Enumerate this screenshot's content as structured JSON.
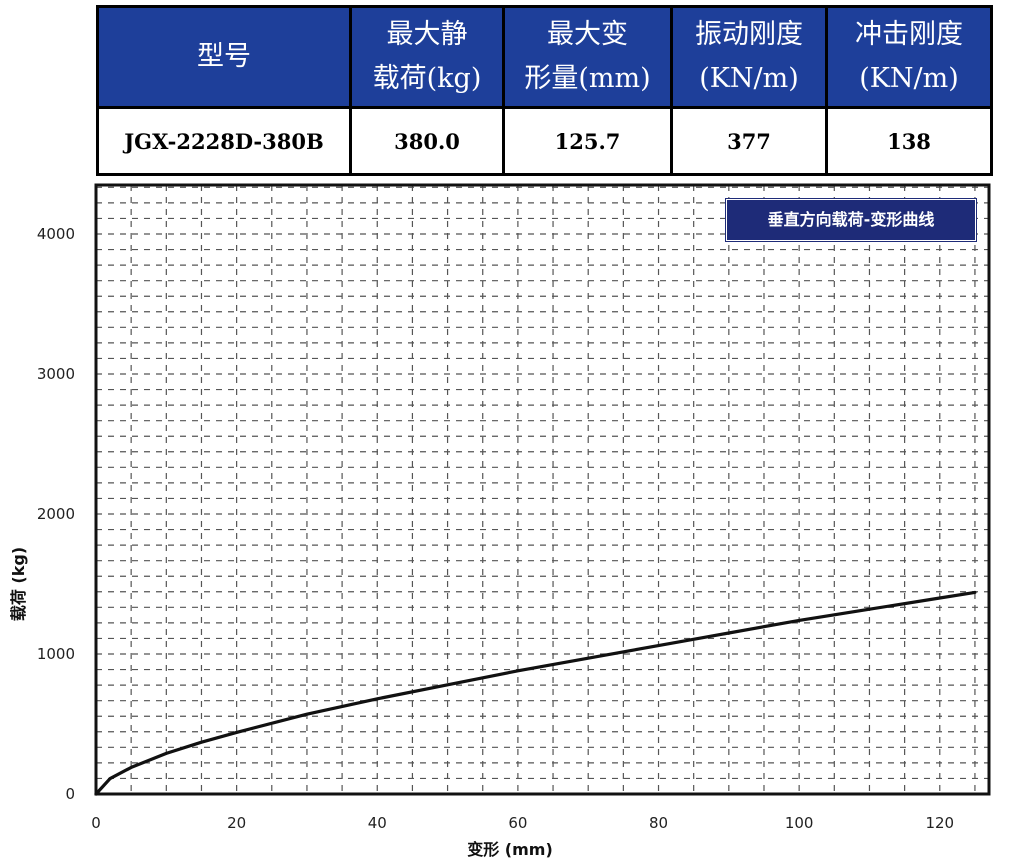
{
  "spec_table": {
    "headers": [
      {
        "line1": "型号",
        "line2": ""
      },
      {
        "line1": "最大静",
        "line2": "载荷(kg)"
      },
      {
        "line1": "最大变",
        "line2": "形量(mm)"
      },
      {
        "line1": "振动刚度",
        "line2": "(KN/m)"
      },
      {
        "line1": "冲击刚度",
        "line2": "(KN/m)"
      }
    ],
    "row": [
      "JGX-2228D-380B",
      "380.0",
      "125.7",
      "377",
      "138"
    ]
  },
  "colors": {
    "header_bg": "#1E3F9A",
    "legend_bg": "#1E2B78",
    "curve": "#111111",
    "grid": "#555555"
  },
  "chart_data": {
    "type": "line",
    "title": "垂直方向载荷-变形曲线",
    "xlabel": "变形 (mm)",
    "ylabel": "载荷 (kg)",
    "xlim": [
      0,
      127
    ],
    "ylim": [
      0,
      4350
    ],
    "xticks": [
      0,
      20,
      40,
      60,
      80,
      100,
      120
    ],
    "yticks": [
      0,
      1000,
      2000,
      3000,
      4000
    ],
    "grid": true,
    "legend": "top-right",
    "series": [
      {
        "name": "垂直方向载荷-变形曲线",
        "x": [
          0,
          2,
          5,
          10,
          15,
          20,
          30,
          40,
          50,
          60,
          70,
          80,
          90,
          100,
          110,
          120,
          125
        ],
        "y": [
          0,
          110,
          190,
          290,
          370,
          440,
          570,
          680,
          780,
          880,
          970,
          1060,
          1150,
          1240,
          1320,
          1400,
          1440
        ]
      }
    ]
  }
}
